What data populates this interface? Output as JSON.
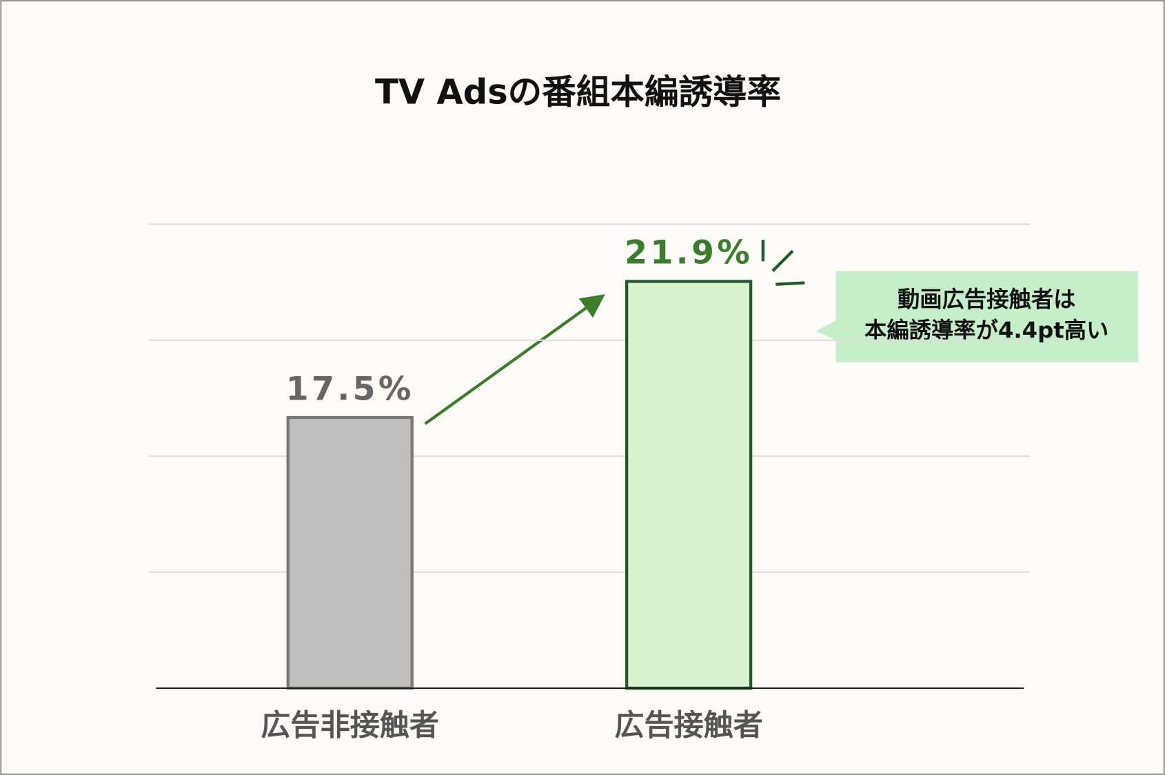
{
  "chart_data": {
    "type": "bar",
    "title": "TV Adsの番組本編誘導率",
    "categories": [
      "広告非接触者",
      "広告接触者"
    ],
    "values": [
      17.5,
      21.9
    ],
    "value_labels": [
      "17.5%",
      "21.9%"
    ],
    "colors": [
      "#bfbfbf",
      "#d9f2d0"
    ],
    "edge_colors": [
      "#777777",
      "#1f5a2a"
    ],
    "label_colors": [
      "#666666",
      "#3a7d2a"
    ],
    "ylim": [
      8.75,
      23.75
    ],
    "yticks": [
      12.5,
      16.25,
      20,
      23.75
    ],
    "grid": true,
    "annotation": [
      "動画広告接触者は",
      "本編誘導率が4.4pt高い"
    ]
  }
}
